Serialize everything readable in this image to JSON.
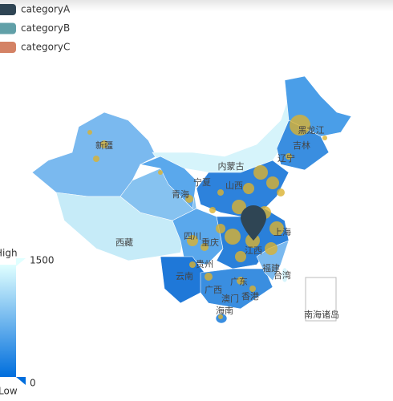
{
  "legend": {
    "items": [
      {
        "name": "categoryA",
        "color": "#2f4554"
      },
      {
        "name": "categoryB",
        "color": "#61a0a8"
      },
      {
        "name": "categoryC",
        "color": "#d48265"
      }
    ]
  },
  "visual_map": {
    "max": 1500,
    "min": 0,
    "high_label": "High",
    "low_label": "Low",
    "color_high": "#e0ffff",
    "color_low": "#006edd"
  },
  "map": {
    "regions": [
      "新疆",
      "西藏",
      "青海",
      "宁夏",
      "内蒙古",
      "山西",
      "吉林",
      "辽宁",
      "黑龙江",
      "四川",
      "重庆",
      "贵州",
      "云南",
      "广西",
      "广东",
      "香港",
      "澳门",
      "海南",
      "福建",
      "台湾",
      "江西",
      "上海",
      "南海诸岛"
    ]
  }
}
